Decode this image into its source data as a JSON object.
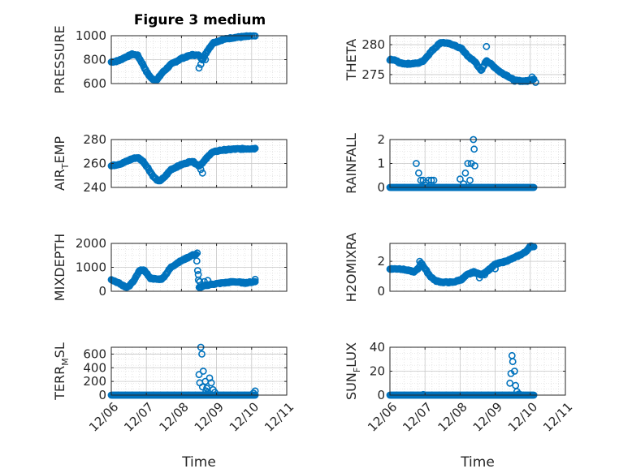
{
  "figure": {
    "title": "Figure 3 medium",
    "background": "#ffffff",
    "marker_color": "#0072bd",
    "grid": true,
    "minor_grid": true
  },
  "chart_data": [
    {
      "type": "scatter",
      "name": "pressure",
      "ylabel": "PRESSURE",
      "title": "Figure 3 medium",
      "ylim": [
        600,
        1000
      ],
      "yticks": [
        "600",
        "800",
        "1000"
      ],
      "ytick_values": [
        600,
        800,
        1000
      ],
      "xlim": [
        0,
        5
      ],
      "x_show_labels": false,
      "key_points": [
        [
          0,
          780
        ],
        [
          0.2,
          790
        ],
        [
          0.4,
          820
        ],
        [
          0.6,
          845
        ],
        [
          0.75,
          835
        ],
        [
          0.9,
          760
        ],
        [
          1.0,
          700
        ],
        [
          1.15,
          640
        ],
        [
          1.3,
          630
        ],
        [
          1.45,
          690
        ],
        [
          1.7,
          760
        ],
        [
          2.0,
          810
        ],
        [
          2.3,
          840
        ],
        [
          2.5,
          835
        ],
        [
          2.6,
          800
        ],
        [
          2.75,
          880
        ],
        [
          2.9,
          940
        ],
        [
          3.2,
          970
        ],
        [
          3.5,
          985
        ],
        [
          3.9,
          995
        ],
        [
          4.1,
          998
        ]
      ],
      "outliers": [
        [
          2.5,
          730
        ],
        [
          2.55,
          760
        ],
        [
          2.68,
          800
        ]
      ]
    },
    {
      "type": "scatter",
      "name": "theta",
      "ylabel": "THETA",
      "ylim": [
        273.5,
        281.5
      ],
      "yticks": [
        "275",
        "280"
      ],
      "ytick_values": [
        275,
        280
      ],
      "xlim": [
        0,
        5
      ],
      "x_show_labels": false,
      "key_points": [
        [
          0,
          277.5
        ],
        [
          0.15,
          277.4
        ],
        [
          0.3,
          276.9
        ],
        [
          0.5,
          276.8
        ],
        [
          0.8,
          276.9
        ],
        [
          0.95,
          277.3
        ],
        [
          1.2,
          279.0
        ],
        [
          1.45,
          280.4
        ],
        [
          1.75,
          280.1
        ],
        [
          2.05,
          279.3
        ],
        [
          2.2,
          278.2
        ],
        [
          2.45,
          277.0
        ],
        [
          2.6,
          275.6
        ],
        [
          2.75,
          277.4
        ],
        [
          2.95,
          276.4
        ],
        [
          3.15,
          275.4
        ],
        [
          3.35,
          274.8
        ],
        [
          3.55,
          274.0
        ],
        [
          3.9,
          273.9
        ],
        [
          4.1,
          274.3
        ]
      ],
      "outliers": [
        [
          2.75,
          279.7
        ],
        [
          4.15,
          273.7
        ],
        [
          4.05,
          274.6
        ]
      ]
    },
    {
      "type": "scatter",
      "name": "air-temp",
      "ylabel": "AIR_TEMP",
      "ylabel_parts": [
        "AIR",
        "T",
        "EMP"
      ],
      "ylim": [
        240,
        280
      ],
      "yticks": [
        "240",
        "260",
        "280"
      ],
      "ytick_values": [
        240,
        260,
        280
      ],
      "xlim": [
        0,
        5
      ],
      "x_show_labels": false,
      "key_points": [
        [
          0,
          258
        ],
        [
          0.3,
          260
        ],
        [
          0.6,
          264
        ],
        [
          0.75,
          265
        ],
        [
          0.9,
          262
        ],
        [
          1.05,
          256
        ],
        [
          1.2,
          249
        ],
        [
          1.35,
          245
        ],
        [
          1.5,
          248
        ],
        [
          1.7,
          255
        ],
        [
          2.0,
          259
        ],
        [
          2.3,
          262
        ],
        [
          2.5,
          258
        ],
        [
          2.65,
          262
        ],
        [
          2.85,
          269
        ],
        [
          3.1,
          271
        ],
        [
          3.5,
          272
        ],
        [
          4.1,
          272.5
        ]
      ],
      "outliers": [
        [
          2.55,
          255
        ],
        [
          2.6,
          252
        ],
        [
          2.72,
          265
        ]
      ]
    },
    {
      "type": "scatter",
      "name": "rainfall",
      "ylabel": "RAINFALL",
      "ylim": [
        0,
        2
      ],
      "yticks": [
        "0",
        "1",
        "2"
      ],
      "ytick_values": [
        0,
        1,
        2
      ],
      "xlim": [
        0,
        5
      ],
      "x_show_labels": false,
      "baseline": 0,
      "baseline_range": [
        0,
        4.1
      ],
      "spikes": [
        [
          0.75,
          1.0
        ],
        [
          0.82,
          0.6
        ],
        [
          0.88,
          0.3
        ],
        [
          0.95,
          0.3
        ],
        [
          1.02,
          0.2
        ],
        [
          1.1,
          0.3
        ],
        [
          1.18,
          0.3
        ],
        [
          1.25,
          0.3
        ],
        [
          1.0,
          0.1
        ],
        [
          2.0,
          0.35
        ],
        [
          2.15,
          0.6
        ],
        [
          2.22,
          1.0
        ],
        [
          2.32,
          1.0
        ],
        [
          2.42,
          0.9
        ],
        [
          2.38,
          2.0
        ],
        [
          2.4,
          1.6
        ],
        [
          2.28,
          0.3
        ],
        [
          2.1,
          0.15
        ]
      ]
    },
    {
      "type": "scatter",
      "name": "mixdepth",
      "ylabel": "MIXDEPTH",
      "ylim": [
        0,
        2000
      ],
      "yticks": [
        "0",
        "1000",
        "2000"
      ],
      "ytick_values": [
        0,
        1000,
        2000
      ],
      "xlim": [
        0,
        5
      ],
      "x_show_labels": false,
      "key_points": [
        [
          0,
          500
        ],
        [
          0.2,
          350
        ],
        [
          0.4,
          180
        ],
        [
          0.5,
          200
        ],
        [
          0.65,
          450
        ],
        [
          0.8,
          850
        ],
        [
          0.9,
          900
        ],
        [
          1.0,
          780
        ],
        [
          1.1,
          550
        ],
        [
          1.3,
          500
        ],
        [
          1.45,
          520
        ],
        [
          1.55,
          700
        ],
        [
          1.7,
          1000
        ],
        [
          1.9,
          1200
        ],
        [
          2.1,
          1350
        ],
        [
          2.3,
          1500
        ],
        [
          2.42,
          1550
        ],
        [
          2.5,
          150
        ],
        [
          2.7,
          250
        ],
        [
          2.9,
          300
        ],
        [
          3.2,
          350
        ],
        [
          3.5,
          400
        ],
        [
          3.8,
          350
        ],
        [
          4.1,
          400
        ]
      ],
      "outliers": [
        [
          2.45,
          1600
        ],
        [
          2.48,
          700
        ],
        [
          2.52,
          400
        ],
        [
          2.65,
          400
        ],
        [
          2.75,
          450
        ],
        [
          4.1,
          500
        ]
      ]
    },
    {
      "type": "scatter",
      "name": "h2omixra",
      "ylabel": "H2OMIXRA",
      "ylim": [
        0,
        3.2
      ],
      "yticks": [
        "0",
        "2"
      ],
      "ytick_values": [
        0,
        2
      ],
      "xlim": [
        0,
        5
      ],
      "x_show_labels": false,
      "key_points": [
        [
          0,
          1.5
        ],
        [
          0.3,
          1.5
        ],
        [
          0.5,
          1.4
        ],
        [
          0.7,
          1.3
        ],
        [
          0.8,
          1.5
        ],
        [
          0.9,
          1.9
        ],
        [
          1.0,
          1.5
        ],
        [
          1.15,
          1.0
        ],
        [
          1.3,
          0.7
        ],
        [
          1.5,
          0.6
        ],
        [
          1.8,
          0.6
        ],
        [
          2.05,
          0.8
        ],
        [
          2.2,
          1.1
        ],
        [
          2.4,
          1.3
        ],
        [
          2.6,
          1.1
        ],
        [
          2.8,
          1.4
        ],
        [
          3.0,
          1.8
        ],
        [
          3.3,
          2.0
        ],
        [
          3.6,
          2.3
        ],
        [
          3.85,
          2.6
        ],
        [
          4.0,
          3.0
        ],
        [
          4.1,
          3.0
        ]
      ],
      "outliers": [
        [
          0.85,
          2.0
        ],
        [
          2.55,
          0.9
        ],
        [
          2.7,
          1.1
        ],
        [
          3.0,
          1.5
        ]
      ]
    },
    {
      "type": "scatter",
      "name": "terr-msl",
      "ylabel": "TERR_MSL",
      "ylabel_parts": [
        "TERR",
        "M",
        "SL"
      ],
      "ylim": [
        0,
        700
      ],
      "yticks": [
        "0",
        "200",
        "400",
        "600"
      ],
      "ytick_values": [
        0,
        200,
        400,
        600
      ],
      "xlim": [
        0,
        5
      ],
      "x_ticks": [
        0,
        1,
        2,
        3,
        4,
        5
      ],
      "x_tick_labels": [
        "12/06",
        "12/07",
        "12/08",
        "12/09",
        "12/10",
        "12/11"
      ],
      "xlabel": "Time",
      "baseline": 0,
      "baseline_range": [
        0,
        4.1
      ],
      "spikes": [
        [
          2.55,
          700
        ],
        [
          2.58,
          600
        ],
        [
          2.62,
          350
        ],
        [
          2.5,
          300
        ],
        [
          2.52,
          180
        ],
        [
          2.6,
          120
        ],
        [
          2.68,
          200
        ],
        [
          2.72,
          100
        ],
        [
          2.75,
          40
        ],
        [
          2.8,
          250
        ],
        [
          2.85,
          180
        ],
        [
          2.9,
          80
        ],
        [
          2.95,
          40
        ],
        [
          2.7,
          60
        ],
        [
          4.05,
          30
        ],
        [
          4.1,
          60
        ]
      ]
    },
    {
      "type": "scatter",
      "name": "sun-flux",
      "ylabel": "SUN_FLUX",
      "ylabel_parts": [
        "SUN",
        "F",
        "LUX"
      ],
      "ylim": [
        0,
        40
      ],
      "yticks": [
        "0",
        "20",
        "40"
      ],
      "ytick_values": [
        0,
        20,
        40
      ],
      "xlim": [
        0,
        5
      ],
      "x_ticks": [
        0,
        1,
        2,
        3,
        4,
        5
      ],
      "x_tick_labels": [
        "12/06",
        "12/07",
        "12/08",
        "12/09",
        "12/10",
        "12/11"
      ],
      "xlabel": "Time",
      "baseline": 0,
      "baseline_range": [
        0,
        4.1
      ],
      "spikes": [
        [
          3.48,
          33
        ],
        [
          3.5,
          28
        ],
        [
          3.55,
          20
        ],
        [
          3.45,
          18
        ],
        [
          3.42,
          10
        ],
        [
          3.58,
          8
        ],
        [
          3.62,
          3
        ],
        [
          3.68,
          1
        ],
        [
          0.95,
          0.5
        ]
      ]
    }
  ]
}
